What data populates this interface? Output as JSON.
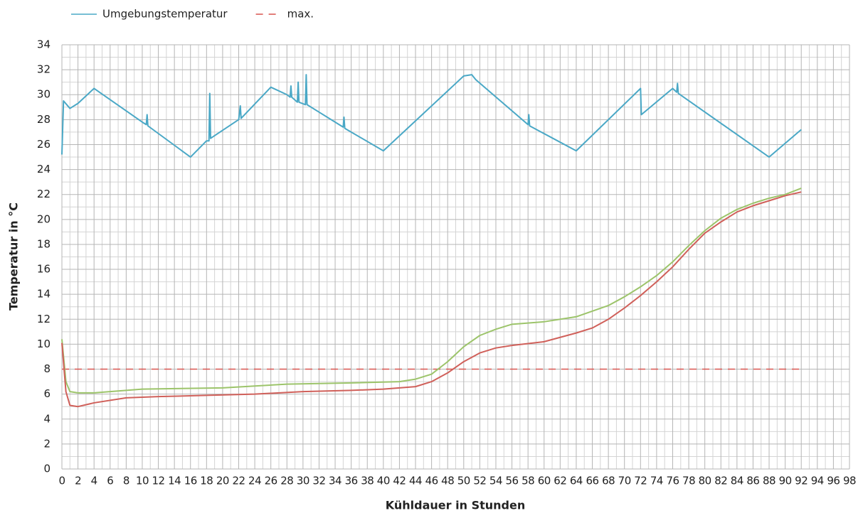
{
  "chart_data": {
    "type": "line",
    "xlabel": "Kühldauer in Stunden",
    "ylabel": "Temperatur in °C",
    "xlim": [
      0,
      98
    ],
    "xticks": [
      0,
      2,
      4,
      6,
      8,
      10,
      12,
      14,
      16,
      18,
      20,
      22,
      24,
      26,
      28,
      30,
      32,
      34,
      36,
      38,
      40,
      42,
      44,
      46,
      48,
      50,
      52,
      54,
      56,
      58,
      60,
      62,
      64,
      66,
      68,
      70,
      72,
      74,
      76,
      78,
      80,
      82,
      84,
      86,
      88,
      90,
      92,
      94,
      96,
      98
    ],
    "ylim": [
      0,
      34
    ],
    "yticks": [
      0,
      2,
      4,
      6,
      8,
      10,
      12,
      14,
      16,
      18,
      20,
      22,
      24,
      26,
      28,
      30,
      32,
      34
    ],
    "grid": true,
    "grid_minor": true,
    "legend": "top-left",
    "series": [
      {
        "name": "Umgebungstemperatur",
        "color": "#4aa8c6",
        "dash": false,
        "x": [
          0,
          0.2,
          1,
          2,
          4,
          10,
          10.5,
          10.6,
          10.7,
          16,
          18,
          18.3,
          18.4,
          18.5,
          22,
          22.2,
          22.3,
          26,
          28,
          28.4,
          28.5,
          28.6,
          29.3,
          29.4,
          29.5,
          30.3,
          30.4,
          30.5,
          32,
          35,
          35.1,
          35.2,
          40,
          50,
          51,
          51.5,
          58,
          58.1,
          58.2,
          64,
          72,
          72.1,
          76,
          76.5,
          76.6,
          76.7,
          88,
          92
        ],
        "values": [
          25.2,
          29.5,
          28.9,
          29.3,
          30.5,
          27.8,
          27.6,
          28.4,
          27.5,
          25,
          26.3,
          26.3,
          30.1,
          26.5,
          28,
          29.1,
          28.1,
          30.6,
          30,
          29.8,
          30.7,
          29.8,
          29.4,
          31,
          29.4,
          29.2,
          31.6,
          29.2,
          28.6,
          27.4,
          28.2,
          27.3,
          25.5,
          31.5,
          31.6,
          31.2,
          27.6,
          28.4,
          27.5,
          25.5,
          30.5,
          28.4,
          30.5,
          30.2,
          30.9,
          30.1,
          25,
          27.2
        ]
      },
      {
        "name": "max.",
        "color": "#d9534f",
        "dash": true,
        "x": [
          0,
          92
        ],
        "values": [
          8,
          8
        ]
      },
      {
        "color": "#9cc46a",
        "dash": false,
        "x": [
          0,
          0.5,
          1,
          2,
          4,
          10,
          20,
          28,
          36,
          42,
          44,
          46,
          48,
          50,
          52,
          54,
          56,
          60,
          64,
          68,
          70,
          72,
          74,
          76,
          78,
          80,
          82,
          84,
          86,
          88,
          90,
          92
        ],
        "values": [
          10.4,
          7,
          6.2,
          6.1,
          6.1,
          6.4,
          6.5,
          6.8,
          6.9,
          7,
          7.2,
          7.6,
          8.6,
          9.8,
          10.7,
          11.2,
          11.6,
          11.8,
          12.2,
          13.1,
          13.8,
          14.6,
          15.5,
          16.6,
          17.9,
          19.1,
          20.1,
          20.8,
          21.3,
          21.7,
          22,
          22.5
        ]
      },
      {
        "color": "#d0605a",
        "dash": false,
        "x": [
          0,
          0.5,
          1,
          2,
          4,
          8,
          12,
          18,
          24,
          30,
          36,
          40,
          44,
          46,
          48,
          50,
          52,
          54,
          56,
          60,
          64,
          66,
          68,
          70,
          72,
          74,
          76,
          78,
          80,
          82,
          84,
          86,
          88,
          90,
          92
        ],
        "values": [
          10.1,
          6.2,
          5.1,
          5,
          5.3,
          5.7,
          5.8,
          5.9,
          6,
          6.2,
          6.3,
          6.4,
          6.6,
          7,
          7.7,
          8.6,
          9.3,
          9.7,
          9.9,
          10.2,
          10.9,
          11.3,
          12,
          12.9,
          13.9,
          15,
          16.2,
          17.6,
          18.9,
          19.8,
          20.6,
          21.1,
          21.5,
          21.9,
          22.2
        ]
      }
    ]
  }
}
